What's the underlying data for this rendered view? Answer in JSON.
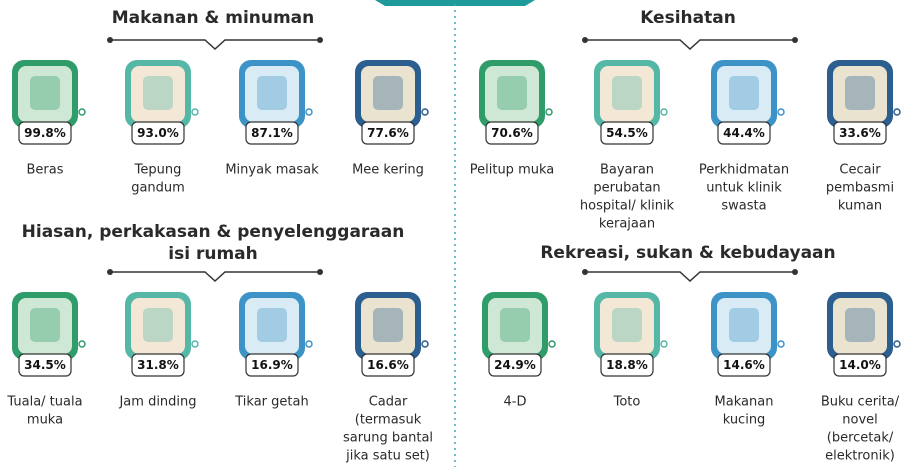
{
  "sections": [
    {
      "title": [
        "Makanan & minuman"
      ],
      "items": [
        {
          "value": "99.8%",
          "label": [
            "Beras"
          ]
        },
        {
          "value": "93.0%",
          "label": [
            "Tepung",
            "gandum"
          ]
        },
        {
          "value": "87.1%",
          "label": [
            "Minyak masak"
          ]
        },
        {
          "value": "77.6%",
          "label": [
            "Mee kering"
          ]
        }
      ]
    },
    {
      "title": [
        "Kesihatan"
      ],
      "items": [
        {
          "value": "70.6%",
          "label": [
            "Pelitup muka"
          ]
        },
        {
          "value": "54.5%",
          "label": [
            "Bayaran",
            "perubatan",
            "hospital/ klinik",
            "kerajaan"
          ]
        },
        {
          "value": "44.4%",
          "label": [
            "Perkhidmatan",
            "untuk klinik",
            "swasta"
          ]
        },
        {
          "value": "33.6%",
          "label": [
            "Cecair",
            "pembasmi",
            "kuman"
          ]
        }
      ]
    },
    {
      "title": [
        "Hiasan, perkakasan & penyelenggaraan",
        "isi rumah"
      ],
      "items": [
        {
          "value": "34.5%",
          "label": [
            "Tuala/ tuala",
            "muka"
          ]
        },
        {
          "value": "31.8%",
          "label": [
            "Jam dinding"
          ]
        },
        {
          "value": "16.9%",
          "label": [
            "Tikar getah"
          ]
        },
        {
          "value": "16.6%",
          "label": [
            "Cadar",
            "(termasuk",
            "sarung bantal",
            "jika satu set)"
          ]
        }
      ]
    },
    {
      "title": [
        "Rekreasi, sukan & kebudayaan"
      ],
      "items": [
        {
          "value": "24.9%",
          "label": [
            "4-D"
          ]
        },
        {
          "value": "18.8%",
          "label": [
            "Toto"
          ]
        },
        {
          "value": "14.6%",
          "label": [
            "Makanan",
            "kucing"
          ]
        },
        {
          "value": "14.0%",
          "label": [
            "Buku cerita/",
            "novel",
            "(bercetak/",
            "elektronik)"
          ]
        }
      ]
    }
  ]
}
